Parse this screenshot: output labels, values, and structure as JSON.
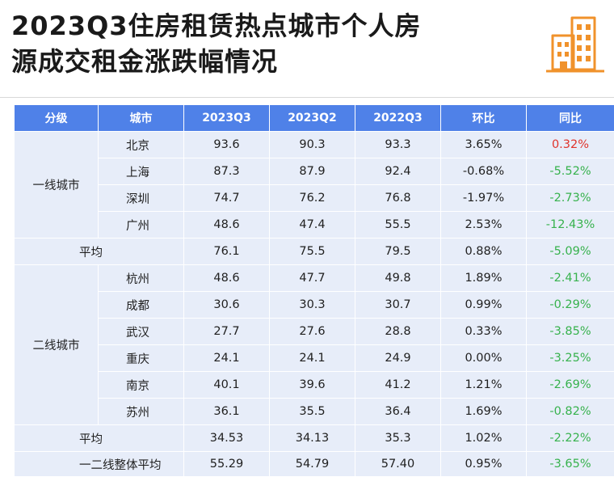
{
  "title_line1": "2023Q3住房租赁热点城市个人房",
  "title_line2": "源成交租金涨跌幅情况",
  "logo_icon": "city-buildings-icon",
  "colors": {
    "header_bg": "#4f81e8",
    "row_bg": "#e7edf9",
    "up": "#e0332b",
    "down": "#37b24d"
  },
  "table": {
    "headers": [
      "分级",
      "城市",
      "2023Q3",
      "2023Q2",
      "2022Q3",
      "环比",
      "同比"
    ],
    "tier1": {
      "label": "一线城市",
      "rows": [
        {
          "city": "北京",
          "q3_2023": "93.6",
          "q2_2023": "90.3",
          "q3_2022": "93.3",
          "qoq": "3.65%",
          "yoy": "0.32%"
        },
        {
          "city": "上海",
          "q3_2023": "87.3",
          "q2_2023": "87.9",
          "q3_2022": "92.4",
          "qoq": "-0.68%",
          "yoy": "-5.52%"
        },
        {
          "city": "深圳",
          "q3_2023": "74.7",
          "q2_2023": "76.2",
          "q3_2022": "76.8",
          "qoq": "-1.97%",
          "yoy": "-2.73%"
        },
        {
          "city": "广州",
          "q3_2023": "48.6",
          "q2_2023": "47.4",
          "q3_2022": "55.5",
          "qoq": "2.53%",
          "yoy": "-12.43%"
        }
      ],
      "avg": {
        "label": "平均",
        "q3_2023": "76.1",
        "q2_2023": "75.5",
        "q3_2022": "79.5",
        "qoq": "0.88%",
        "yoy": "-5.09%"
      }
    },
    "tier2": {
      "label": "二线城市",
      "rows": [
        {
          "city": "杭州",
          "q3_2023": "48.6",
          "q2_2023": "47.7",
          "q3_2022": "49.8",
          "qoq": "1.89%",
          "yoy": "-2.41%"
        },
        {
          "city": "成都",
          "q3_2023": "30.6",
          "q2_2023": "30.3",
          "q3_2022": "30.7",
          "qoq": "0.99%",
          "yoy": "-0.29%"
        },
        {
          "city": "武汉",
          "q3_2023": "27.7",
          "q2_2023": "27.6",
          "q3_2022": "28.8",
          "qoq": "0.33%",
          "yoy": "-3.85%"
        },
        {
          "city": "重庆",
          "q3_2023": "24.1",
          "q2_2023": "24.1",
          "q3_2022": "24.9",
          "qoq": "0.00%",
          "yoy": "-3.25%"
        },
        {
          "city": "南京",
          "q3_2023": "40.1",
          "q2_2023": "39.6",
          "q3_2022": "41.2",
          "qoq": "1.21%",
          "yoy": "-2.69%"
        },
        {
          "city": "苏州",
          "q3_2023": "36.1",
          "q2_2023": "35.5",
          "q3_2022": "36.4",
          "qoq": "1.69%",
          "yoy": "-0.82%"
        }
      ],
      "avg": {
        "label": "平均",
        "q3_2023": "34.53",
        "q2_2023": "34.13",
        "q3_2022": "35.3",
        "qoq": "1.02%",
        "yoy": "-2.22%"
      }
    },
    "overall": {
      "label": "一二线整体平均",
      "q3_2023": "55.29",
      "q2_2023": "54.79",
      "q3_2022": "57.40",
      "qoq": "0.95%",
      "yoy": "-3.65%"
    }
  }
}
